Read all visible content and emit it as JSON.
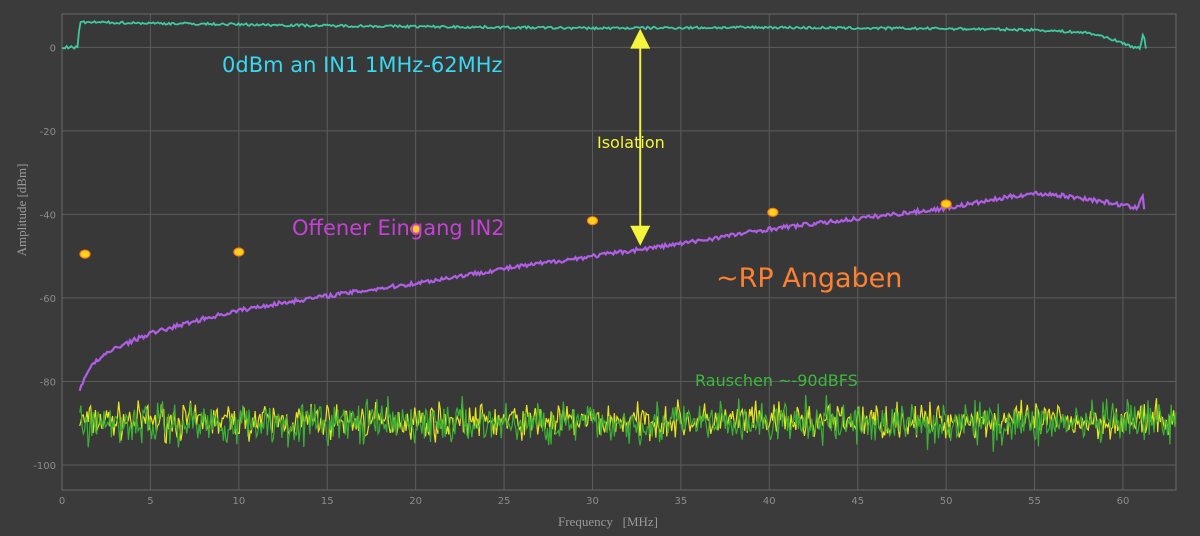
{
  "chart_data": {
    "type": "line",
    "xlabel": "Frequency   [MHz]",
    "ylabel": "Amplitude [dBm]",
    "xlim": [
      0,
      63
    ],
    "ylim": [
      -106,
      8
    ],
    "xticks": [
      0,
      5,
      10,
      15,
      20,
      25,
      30,
      35,
      40,
      45,
      50,
      55,
      60
    ],
    "yticks": [
      0,
      -20,
      -40,
      -60,
      -80,
      -100
    ],
    "grid": true,
    "series": [
      {
        "key": "in1",
        "color": "#3fc9a0",
        "x": [
          0,
          0.9,
          1,
          2,
          5,
          10,
          15,
          20,
          25,
          30,
          35,
          40,
          45,
          50,
          55,
          58,
          59,
          60,
          60.5,
          61,
          61.1,
          61.2,
          61.3
        ],
        "y": [
          0,
          0,
          6,
          6,
          5.8,
          5.5,
          5.2,
          5.0,
          4.8,
          4.6,
          4.7,
          4.8,
          4.6,
          4.5,
          4.2,
          3.5,
          2.5,
          1,
          0.2,
          -0.3,
          3.2,
          2.5,
          0
        ]
      },
      {
        "key": "in2",
        "color": "#b05ee6",
        "x": [
          1,
          1.5,
          2,
          3,
          5,
          8,
          10,
          12,
          15,
          20,
          25,
          30,
          35,
          40,
          45,
          50,
          52,
          54,
          55,
          56,
          58,
          60,
          60.8,
          61,
          61.1,
          61.2
        ],
        "y": [
          -82,
          -77,
          -75,
          -72,
          -68.5,
          -65,
          -63,
          -61.5,
          -59.5,
          -56.5,
          -53,
          -50,
          -47,
          -43.5,
          -41,
          -38.5,
          -37,
          -35.5,
          -35,
          -35.2,
          -36.3,
          -37.8,
          -38.6,
          -36,
          -35,
          -38.5
        ]
      },
      {
        "key": "noise_yellow",
        "color": "#e6e61e",
        "x_range": [
          1,
          63
        ],
        "level": -89.5,
        "spread": 4
      },
      {
        "key": "noise_green",
        "color": "#3cb034",
        "x_range": [
          1,
          63
        ],
        "level": -90,
        "spread": 5
      }
    ],
    "rp_points": {
      "color": "#ffd21e",
      "x": [
        1.3,
        10,
        20,
        30,
        40.2,
        50
      ],
      "y": [
        -49.5,
        -49,
        -43.5,
        -41.5,
        -39.5,
        -37.5
      ]
    },
    "annotations": {
      "in1_label": "0dBm an IN1 1MHz-62MHz",
      "in2_label": "Offener Eingang IN2",
      "rp_label": "~RP Angaben",
      "isolation_label": "Isolation",
      "noise_label": "Rauschen ~-90dBFS"
    },
    "arrow": {
      "x": 32.7,
      "y_top": 4.5,
      "y_bottom": -47.5,
      "color": "#f4f43c"
    }
  }
}
